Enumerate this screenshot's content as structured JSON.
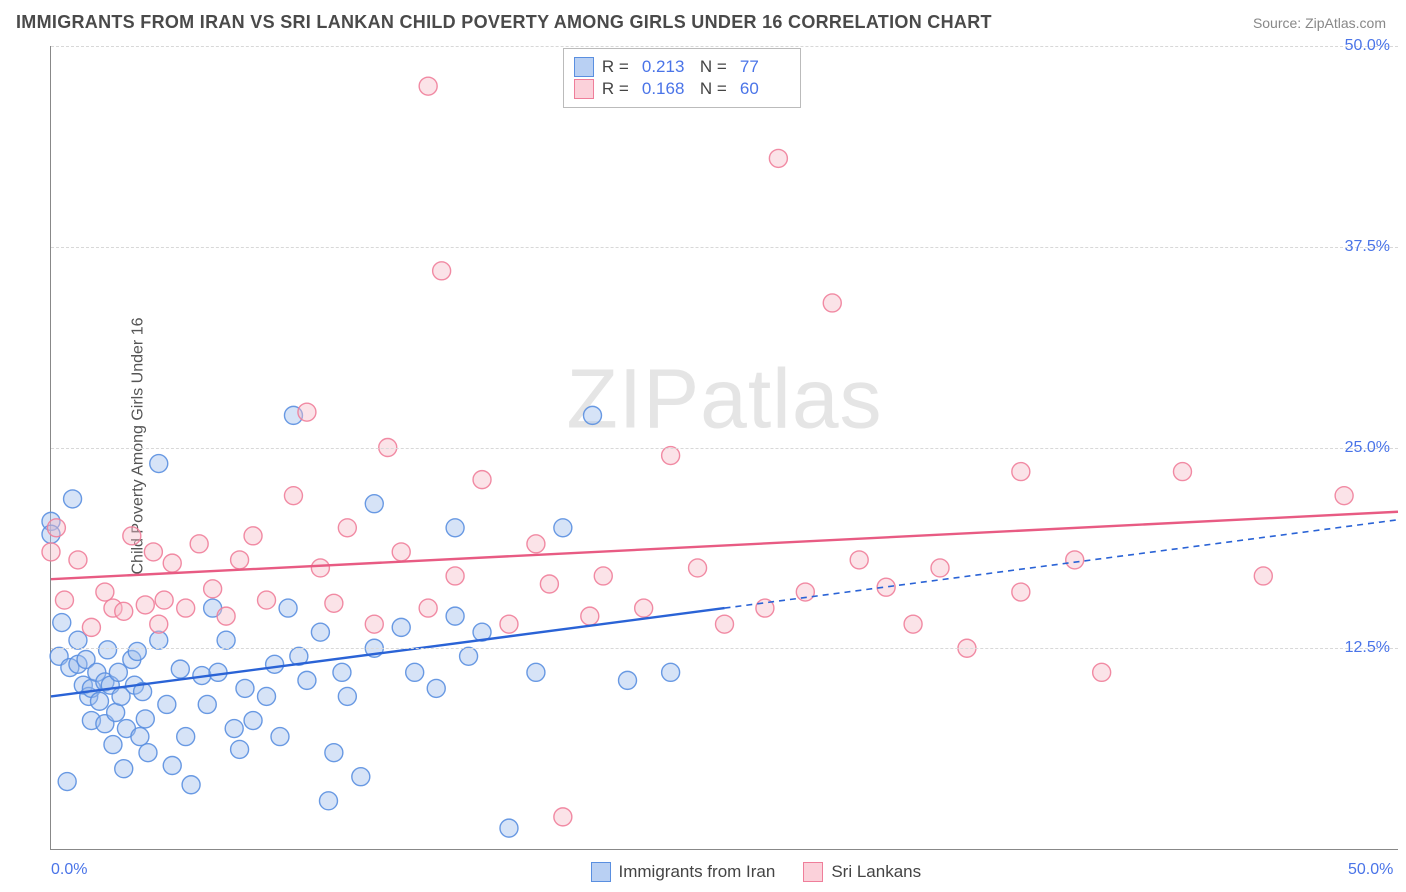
{
  "header": {
    "title": "IMMIGRANTS FROM IRAN VS SRI LANKAN CHILD POVERTY AMONG GIRLS UNDER 16 CORRELATION CHART",
    "source_label": "Source:",
    "source_name": "ZipAtlas.com"
  },
  "watermark": {
    "zip": "ZIP",
    "atlas": "atlas"
  },
  "chart": {
    "type": "scatter",
    "xlim": [
      0,
      50
    ],
    "ylim": [
      0,
      50
    ],
    "x_ticks": [
      {
        "value": 0,
        "label": "0.0%"
      },
      {
        "value": 50,
        "label": "50.0%"
      }
    ],
    "y_ticks": [
      {
        "value": 12.5,
        "label": "12.5%"
      },
      {
        "value": 25.0,
        "label": "25.0%"
      },
      {
        "value": 37.5,
        "label": "37.5%"
      },
      {
        "value": 50.0,
        "label": "50.0%"
      }
    ],
    "ylabel": "Child Poverty Among Girls Under 16",
    "background_color": "#ffffff",
    "grid_color": "#d8d8d8",
    "axis_color": "#888888",
    "tick_label_color": "#4a74e8",
    "marker_radius": 9,
    "marker_opacity": 0.42,
    "marker_stroke_opacity": 0.9,
    "trend_line_width": 2.4
  },
  "legend_top": {
    "rows": [
      {
        "swatch_series": "blue",
        "r_label": "R =",
        "r_value": "0.213",
        "n_label": "N =",
        "n_value": "77"
      },
      {
        "swatch_series": "pink",
        "r_label": "R =",
        "r_value": "0.168",
        "n_label": "N =",
        "n_value": "60"
      }
    ]
  },
  "legend_bottom": {
    "items": [
      {
        "swatch_series": "blue",
        "label": "Immigrants from Iran"
      },
      {
        "swatch_series": "pink",
        "label": "Sri Lankans"
      }
    ]
  },
  "series": {
    "blue": {
      "fill": "#9dbcec",
      "stroke": "#5a8fe0",
      "swatch_fill": "#b9d0f3",
      "swatch_stroke": "#5a8fe0",
      "trend": {
        "x1": 0,
        "y1": 9.5,
        "x2": 25,
        "y2": 15.0,
        "x2_ext": 50,
        "y2_ext": 20.5
      },
      "trend_color": "#2a63d6",
      "points": [
        [
          0,
          20.4
        ],
        [
          0,
          19.6
        ],
        [
          0.3,
          12.0
        ],
        [
          0.4,
          14.1
        ],
        [
          0.6,
          4.2
        ],
        [
          0.7,
          11.3
        ],
        [
          0.8,
          21.8
        ],
        [
          1,
          13.0
        ],
        [
          1,
          11.5
        ],
        [
          1.2,
          10.2
        ],
        [
          1.3,
          11.8
        ],
        [
          1.4,
          9.5
        ],
        [
          1.5,
          10.0
        ],
        [
          1.5,
          8.0
        ],
        [
          1.7,
          11.0
        ],
        [
          1.8,
          9.2
        ],
        [
          2,
          10.4
        ],
        [
          2,
          7.8
        ],
        [
          2.1,
          12.4
        ],
        [
          2.2,
          10.2
        ],
        [
          2.3,
          6.5
        ],
        [
          2.4,
          8.5
        ],
        [
          2.5,
          11.0
        ],
        [
          2.6,
          9.5
        ],
        [
          2.7,
          5.0
        ],
        [
          2.8,
          7.5
        ],
        [
          3,
          11.8
        ],
        [
          3.1,
          10.2
        ],
        [
          3.2,
          12.3
        ],
        [
          3.3,
          7.0
        ],
        [
          3.4,
          9.8
        ],
        [
          3.5,
          8.1
        ],
        [
          3.6,
          6.0
        ],
        [
          4,
          24.0
        ],
        [
          4,
          13.0
        ],
        [
          4.3,
          9.0
        ],
        [
          4.5,
          5.2
        ],
        [
          4.8,
          11.2
        ],
        [
          5,
          7.0
        ],
        [
          5.2,
          4.0
        ],
        [
          5.6,
          10.8
        ],
        [
          5.8,
          9.0
        ],
        [
          6,
          15.0
        ],
        [
          6.2,
          11.0
        ],
        [
          6.5,
          13.0
        ],
        [
          6.8,
          7.5
        ],
        [
          7,
          6.2
        ],
        [
          7.2,
          10.0
        ],
        [
          7.5,
          8.0
        ],
        [
          8,
          9.5
        ],
        [
          8.3,
          11.5
        ],
        [
          8.5,
          7.0
        ],
        [
          8.8,
          15.0
        ],
        [
          9,
          27.0
        ],
        [
          9.2,
          12.0
        ],
        [
          9.5,
          10.5
        ],
        [
          10,
          13.5
        ],
        [
          10.3,
          3.0
        ],
        [
          10.5,
          6.0
        ],
        [
          10.8,
          11.0
        ],
        [
          11,
          9.5
        ],
        [
          11.5,
          4.5
        ],
        [
          12,
          21.5
        ],
        [
          12,
          12.5
        ],
        [
          13,
          13.8
        ],
        [
          13.5,
          11.0
        ],
        [
          14.3,
          10.0
        ],
        [
          15,
          20.0
        ],
        [
          15,
          14.5
        ],
        [
          15.5,
          12.0
        ],
        [
          16,
          13.5
        ],
        [
          17,
          1.3
        ],
        [
          18,
          11.0
        ],
        [
          19,
          20.0
        ],
        [
          20.1,
          27.0
        ],
        [
          21.4,
          10.5
        ],
        [
          23,
          11.0
        ]
      ]
    },
    "pink": {
      "fill": "#f6bcc8",
      "stroke": "#ef7e9a",
      "swatch_fill": "#fbd1da",
      "swatch_stroke": "#ef7e9a",
      "trend": {
        "x1": 0,
        "y1": 16.8,
        "x2": 50,
        "y2": 21.0,
        "x2_ext": 50,
        "y2_ext": 21.0
      },
      "trend_color": "#e85b83",
      "points": [
        [
          0,
          18.5
        ],
        [
          0.2,
          20.0
        ],
        [
          0.5,
          15.5
        ],
        [
          1,
          18.0
        ],
        [
          1.5,
          13.8
        ],
        [
          2,
          16.0
        ],
        [
          2.3,
          15.0
        ],
        [
          2.7,
          14.8
        ],
        [
          3,
          19.5
        ],
        [
          3.5,
          15.2
        ],
        [
          3.8,
          18.5
        ],
        [
          4,
          14.0
        ],
        [
          4.2,
          15.5
        ],
        [
          4.5,
          17.8
        ],
        [
          5,
          15.0
        ],
        [
          5.5,
          19.0
        ],
        [
          6,
          16.2
        ],
        [
          6.5,
          14.5
        ],
        [
          7,
          18.0
        ],
        [
          7.5,
          19.5
        ],
        [
          8,
          15.5
        ],
        [
          9,
          22.0
        ],
        [
          9.5,
          27.2
        ],
        [
          10,
          17.5
        ],
        [
          10.5,
          15.3
        ],
        [
          11,
          20.0
        ],
        [
          12,
          14.0
        ],
        [
          12.5,
          25.0
        ],
        [
          13,
          18.5
        ],
        [
          14,
          47.5
        ],
        [
          14,
          15.0
        ],
        [
          14.5,
          36.0
        ],
        [
          15,
          17.0
        ],
        [
          16,
          23.0
        ],
        [
          17,
          14.0
        ],
        [
          18,
          19.0
        ],
        [
          18.5,
          16.5
        ],
        [
          19,
          2.0
        ],
        [
          20,
          14.5
        ],
        [
          20.5,
          17.0
        ],
        [
          22,
          15.0
        ],
        [
          23,
          24.5
        ],
        [
          24,
          17.5
        ],
        [
          25,
          14.0
        ],
        [
          26.5,
          15.0
        ],
        [
          27,
          43.0
        ],
        [
          28,
          16.0
        ],
        [
          29,
          34.0
        ],
        [
          30,
          18.0
        ],
        [
          31,
          16.3
        ],
        [
          32,
          14.0
        ],
        [
          33,
          17.5
        ],
        [
          34,
          12.5
        ],
        [
          36,
          16.0
        ],
        [
          36,
          23.5
        ],
        [
          38,
          18.0
        ],
        [
          39,
          11.0
        ],
        [
          42,
          23.5
        ],
        [
          45,
          17.0
        ],
        [
          48,
          22.0
        ]
      ]
    }
  }
}
